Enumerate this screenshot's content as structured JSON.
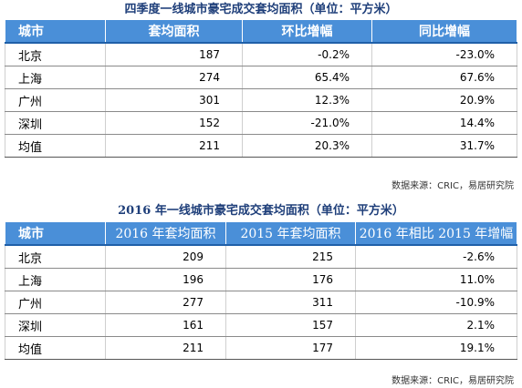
{
  "table1": {
    "title": "四季度一线城市豪宅成交套均面积（单位：平方米）",
    "headers": [
      "城市",
      "套均面积",
      "环比增幅",
      "同比增幅"
    ],
    "rows": [
      [
        "北京",
        "187",
        "-0.2%",
        "-23.0%"
      ],
      [
        "上海",
        "274",
        "65.4%",
        "67.6%"
      ],
      [
        "广州",
        "301",
        "12.3%",
        "20.9%"
      ],
      [
        "深圳",
        "152",
        "-21.0%",
        "14.4%"
      ],
      [
        "均值",
        "211",
        "20.3%",
        "31.7%"
      ]
    ],
    "source": "数据来源：CRIC，易居研究院"
  },
  "table2": {
    "title": "2016 年一线城市豪宅成交套均面积（单位：平方米）",
    "headers": [
      "城市",
      "2016 年套均面积",
      "2015 年套均面积",
      "2016 年相比 2015 年增幅"
    ],
    "rows": [
      [
        "北京",
        "209",
        "215",
        "-2.6%"
      ],
      [
        "上海",
        "196",
        "176",
        "11.0%"
      ],
      [
        "广州",
        "277",
        "311",
        "-10.9%"
      ],
      [
        "深圳",
        "161",
        "157",
        "2.1%"
      ],
      [
        "均值",
        "211",
        "177",
        "19.1%"
      ]
    ],
    "source": "数据来源：CRIC，易居研究院"
  },
  "colors": {
    "header_bg": "#4a8fd8",
    "title_color": "#1f3f7a",
    "header_text": "#ffffff"
  }
}
